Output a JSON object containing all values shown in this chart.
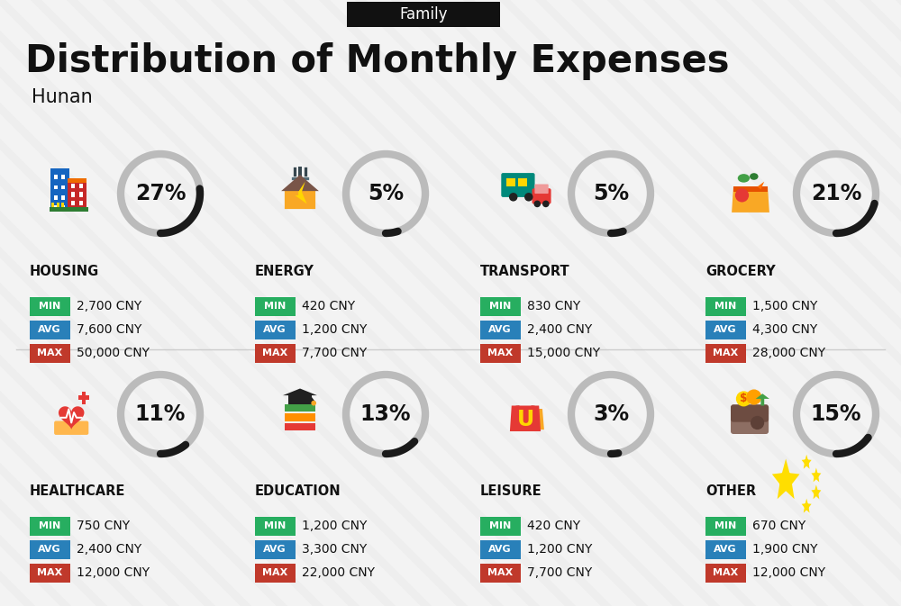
{
  "title": "Distribution of Monthly Expenses",
  "subtitle": "Hunan",
  "family_label": "Family",
  "background_color": "#eeeeee",
  "categories": [
    {
      "name": "HOUSING",
      "pct": 27,
      "icon": "housing",
      "min": "2,700 CNY",
      "avg": "7,600 CNY",
      "max": "50,000 CNY",
      "col": 0,
      "row": 0
    },
    {
      "name": "ENERGY",
      "pct": 5,
      "icon": "energy",
      "min": "420 CNY",
      "avg": "1,200 CNY",
      "max": "7,700 CNY",
      "col": 1,
      "row": 0
    },
    {
      "name": "TRANSPORT",
      "pct": 5,
      "icon": "transport",
      "min": "830 CNY",
      "avg": "2,400 CNY",
      "max": "15,000 CNY",
      "col": 2,
      "row": 0
    },
    {
      "name": "GROCERY",
      "pct": 21,
      "icon": "grocery",
      "min": "1,500 CNY",
      "avg": "4,300 CNY",
      "max": "28,000 CNY",
      "col": 3,
      "row": 0
    },
    {
      "name": "HEALTHCARE",
      "pct": 11,
      "icon": "healthcare",
      "min": "750 CNY",
      "avg": "2,400 CNY",
      "max": "12,000 CNY",
      "col": 0,
      "row": 1
    },
    {
      "name": "EDUCATION",
      "pct": 13,
      "icon": "education",
      "min": "1,200 CNY",
      "avg": "3,300 CNY",
      "max": "22,000 CNY",
      "col": 1,
      "row": 1
    },
    {
      "name": "LEISURE",
      "pct": 3,
      "icon": "leisure",
      "min": "420 CNY",
      "avg": "1,200 CNY",
      "max": "7,700 CNY",
      "col": 2,
      "row": 1
    },
    {
      "name": "OTHER",
      "pct": 15,
      "icon": "other",
      "min": "670 CNY",
      "avg": "1,900 CNY",
      "max": "12,000 CNY",
      "col": 3,
      "row": 1
    }
  ],
  "color_min": "#27ae60",
  "color_avg": "#2980b9",
  "color_max": "#c0392b",
  "arc_color_filled": "#1a1a1a",
  "arc_color_empty": "#bbbbbb",
  "title_fontsize": 30,
  "subtitle_fontsize": 15,
  "family_fontsize": 12,
  "cat_name_fontsize": 10.5,
  "pct_fontsize": 17,
  "val_fontsize": 10
}
